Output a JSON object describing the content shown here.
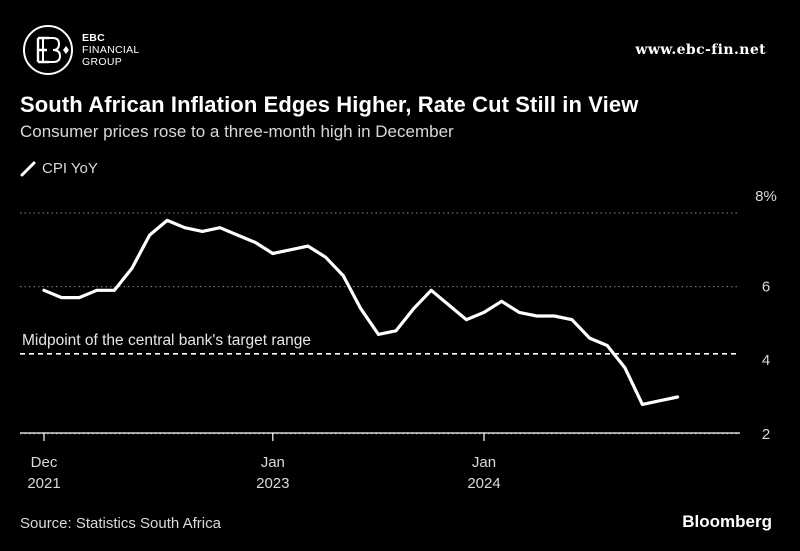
{
  "brand": {
    "logo": "ebc-logo-icon",
    "line1": "EBC",
    "line2": "FINANCIAL",
    "line3": "GROUP",
    "website": "www.ebc-fin.net"
  },
  "chart_data": {
    "type": "line",
    "title": "South African Inflation Edges Higher, Rate Cut Still in View",
    "subtitle": "Consumer prices rose to a three-month high in December",
    "xlabel": "",
    "ylabel": "",
    "ylim": [
      1.9,
      8.2
    ],
    "yticks": [
      {
        "value": 8,
        "label": "8%"
      },
      {
        "value": 6,
        "label": "6"
      },
      {
        "value": 4,
        "label": "4"
      },
      {
        "value": 2,
        "label": "2"
      }
    ],
    "xticks": [
      {
        "index": 0,
        "line1": "Dec",
        "line2": "2021"
      },
      {
        "index": 13,
        "line1": "Jan",
        "line2": "2023"
      },
      {
        "index": 25,
        "line1": "Jan",
        "line2": ""
      },
      {
        "index": 25,
        "line1": "",
        "line2": "2024"
      }
    ],
    "legend": "top-left",
    "grid": "horizontal dotted",
    "series": [
      {
        "name": "CPI YoY",
        "color": "#ffffff",
        "x": [
          "2021-12",
          "2022-01",
          "2022-02",
          "2022-03",
          "2022-04",
          "2022-05",
          "2022-06",
          "2022-07",
          "2022-08",
          "2022-09",
          "2022-10",
          "2022-11",
          "2022-12",
          "2023-01",
          "2023-02",
          "2023-03",
          "2023-04",
          "2023-05",
          "2023-06",
          "2023-07",
          "2023-08",
          "2023-09",
          "2023-10",
          "2023-11",
          "2023-12",
          "2024-01",
          "2024-02",
          "2024-03",
          "2024-04",
          "2024-05",
          "2024-06",
          "2024-07",
          "2024-08",
          "2024-09",
          "2024-10",
          "2024-11",
          "2024-12"
        ],
        "values": [
          5.9,
          5.7,
          5.7,
          5.9,
          5.9,
          6.5,
          7.4,
          7.8,
          7.6,
          7.5,
          7.6,
          7.4,
          7.2,
          6.9,
          7.0,
          7.1,
          6.8,
          6.3,
          5.4,
          4.7,
          4.8,
          5.4,
          5.9,
          5.5,
          5.1,
          5.3,
          5.6,
          5.3,
          5.2,
          5.2,
          5.1,
          4.6,
          4.4,
          3.8,
          2.8,
          2.9,
          3.0
        ]
      }
    ],
    "annotations": [
      {
        "text": "Midpoint of the central bank's target range",
        "y": 4.5,
        "style": "dashed"
      }
    ]
  },
  "source": "Source: Statistics South Africa",
  "publisher": "Bloomberg"
}
